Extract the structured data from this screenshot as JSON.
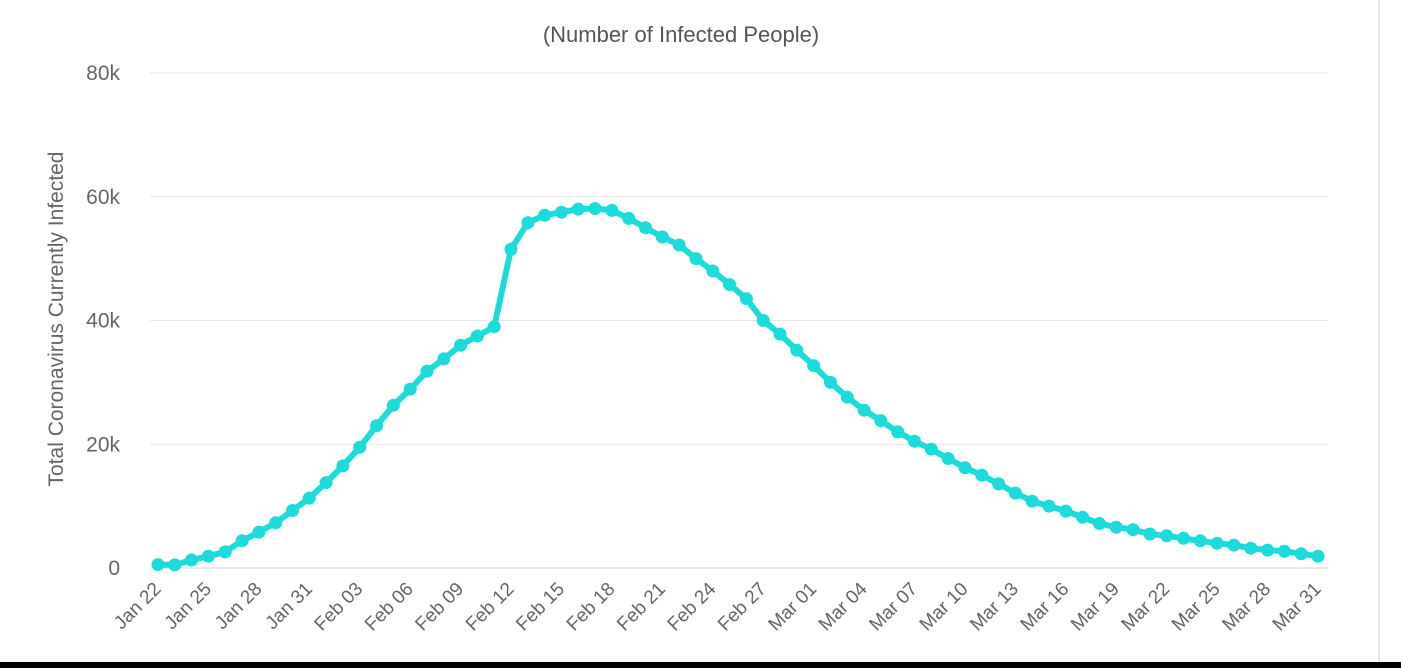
{
  "chart_data": {
    "type": "line",
    "title": "(Number of Infected People)",
    "xlabel": "",
    "ylabel": "Total Coronavirus Currently Infected",
    "ylim": [
      0,
      80000
    ],
    "yticks": [
      0,
      20000,
      40000,
      60000,
      80000
    ],
    "ytick_labels": [
      "0",
      "20k",
      "40k",
      "60k",
      "80k"
    ],
    "xtick_labels": [
      "Jan 22",
      "Jan 25",
      "Jan 28",
      "Jan 31",
      "Feb 03",
      "Feb 06",
      "Feb 09",
      "Feb 12",
      "Feb 15",
      "Feb 18",
      "Feb 21",
      "Feb 24",
      "Feb 27",
      "Mar 01",
      "Mar 04",
      "Mar 07",
      "Mar 10",
      "Mar 13",
      "Mar 16",
      "Mar 19",
      "Mar 22",
      "Mar 25",
      "Mar 28",
      "Mar 31"
    ],
    "grid": true,
    "legend": "none",
    "color": "#1ddbd9",
    "series": [
      {
        "x": [
          "Jan 22",
          "Jan 23",
          "Jan 24",
          "Jan 25",
          "Jan 26",
          "Jan 27",
          "Jan 28",
          "Jan 29",
          "Jan 30",
          "Jan 31",
          "Feb 01",
          "Feb 02",
          "Feb 03",
          "Feb 04",
          "Feb 05",
          "Feb 06",
          "Feb 07",
          "Feb 08",
          "Feb 09",
          "Feb 10",
          "Feb 11",
          "Feb 12",
          "Feb 13",
          "Feb 14",
          "Feb 15",
          "Feb 16",
          "Feb 17",
          "Feb 18",
          "Feb 19",
          "Feb 20",
          "Feb 21",
          "Feb 22",
          "Feb 23",
          "Feb 24",
          "Feb 25",
          "Feb 26",
          "Feb 27",
          "Feb 28",
          "Feb 29",
          "Mar 01",
          "Mar 02",
          "Mar 03",
          "Mar 04",
          "Mar 05",
          "Mar 06",
          "Mar 07",
          "Mar 08",
          "Mar 09",
          "Mar 10",
          "Mar 11",
          "Mar 12",
          "Mar 13",
          "Mar 14",
          "Mar 15",
          "Mar 16",
          "Mar 17",
          "Mar 18",
          "Mar 19",
          "Mar 20",
          "Mar 21",
          "Mar 22",
          "Mar 23",
          "Mar 24",
          "Mar 25",
          "Mar 26",
          "Mar 27",
          "Mar 28",
          "Mar 29",
          "Mar 30",
          "Mar 31"
        ],
        "values": [
          550,
          500,
          1300,
          1900,
          2600,
          4400,
          5800,
          7300,
          9300,
          11300,
          13800,
          16500,
          19500,
          23000,
          26300,
          28900,
          31800,
          33800,
          36000,
          37500,
          39000,
          51500,
          55800,
          57000,
          57500,
          58000,
          58100,
          57800,
          56500,
          55000,
          53500,
          52200,
          50000,
          48000,
          45800,
          43500,
          40000,
          37800,
          35200,
          32700,
          30000,
          27600,
          25500,
          23800,
          22000,
          20500,
          19200,
          17700,
          16200,
          15000,
          13600,
          12100,
          10800,
          10000,
          9200,
          8200,
          7200,
          6600,
          6200,
          5500,
          5200,
          4800,
          4400,
          4000,
          3700,
          3200,
          2900,
          2700,
          2300,
          1900
        ]
      }
    ]
  }
}
